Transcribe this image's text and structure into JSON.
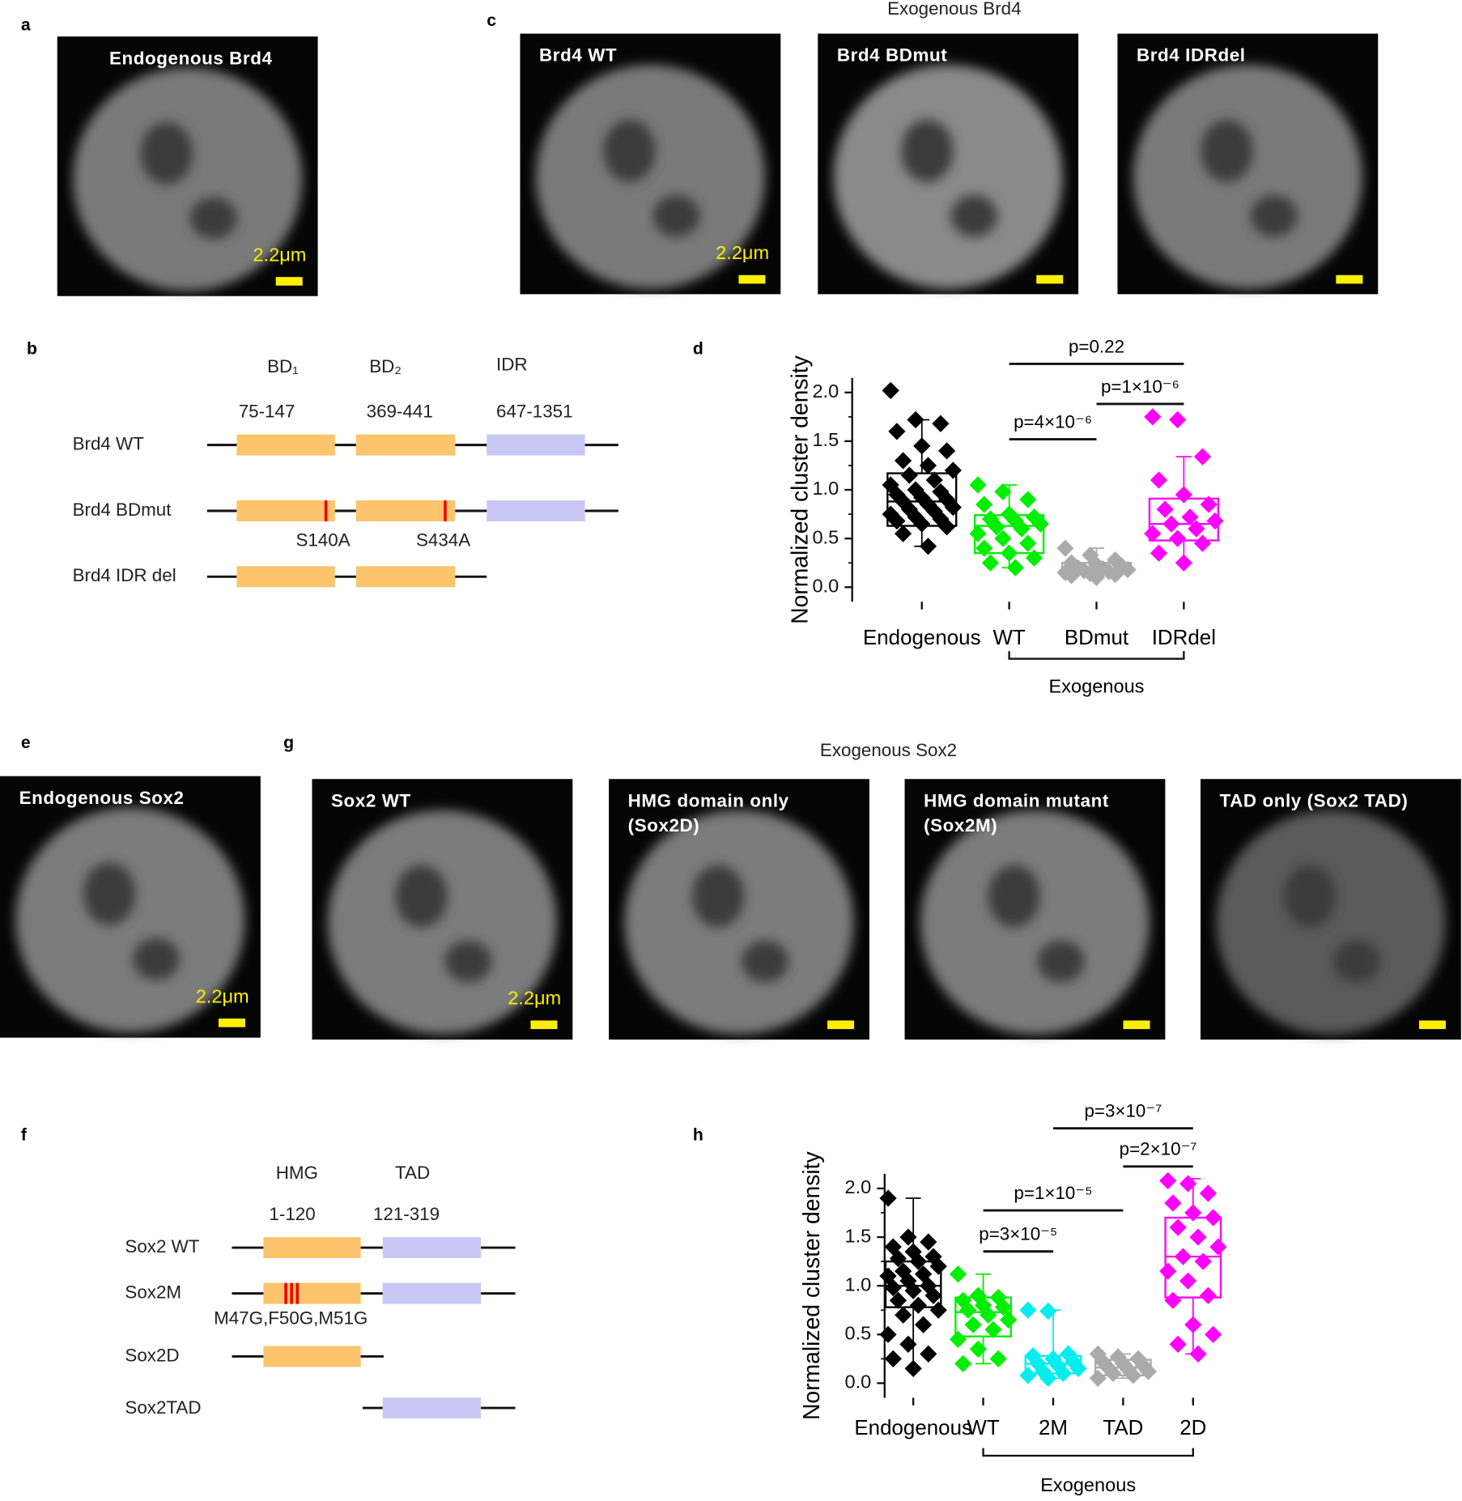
{
  "panels": {
    "a": {
      "letter": "a",
      "image": {
        "title": "Endogenous Brd4",
        "scale_bar": "2.2μm"
      }
    },
    "b": {
      "letter": "b",
      "domains": [
        {
          "name": "BD₁",
          "range": "75-147"
        },
        {
          "name": "BD₂",
          "range": "369-441"
        },
        {
          "name": "IDR",
          "range": "647-1351"
        }
      ],
      "constructs": [
        {
          "name": "Brd4 WT"
        },
        {
          "name": "Brd4 BDmut",
          "mutations": [
            "S140A",
            "S434A"
          ]
        },
        {
          "name": "Brd4 IDR del"
        }
      ]
    },
    "c": {
      "letter": "c",
      "title": "Exogenous Brd4",
      "images": [
        {
          "title": "Brd4 WT",
          "scale_bar": "2.2μm"
        },
        {
          "title": "Brd4 BDmut"
        },
        {
          "title": "Brd4 IDRdel"
        }
      ]
    },
    "d": {
      "letter": "d"
    },
    "e": {
      "letter": "e",
      "image": {
        "title": "Endogenous Sox2",
        "scale_bar": "2.2μm"
      }
    },
    "f": {
      "letter": "f",
      "domains": [
        {
          "name": "HMG",
          "range": "1-120"
        },
        {
          "name": "TAD",
          "range": "121-319"
        }
      ],
      "constructs": [
        {
          "name": "Sox2 WT"
        },
        {
          "name": "Sox2M",
          "mutations": "M47G,F50G,M51G"
        },
        {
          "name": "Sox2D"
        },
        {
          "name": "Sox2TAD"
        }
      ]
    },
    "g": {
      "letter": "g",
      "title": "Exogenous Sox2",
      "images": [
        {
          "title": [
            "Sox2 WT"
          ],
          "scale_bar": "2.2μm"
        },
        {
          "title": [
            "HMG domain only",
            "(Sox2D)"
          ]
        },
        {
          "title": [
            "HMG domain mutant",
            "(Sox2M)"
          ]
        },
        {
          "title": [
            "TAD only (Sox2 TAD)"
          ]
        }
      ]
    },
    "h": {
      "letter": "h"
    }
  },
  "chart_data": [
    {
      "type": "box",
      "ylabel": "Normalized cluster density",
      "categories": [
        "Endogenous",
        "WT",
        "BDmut",
        "IDRdel"
      ],
      "group_label": "Exogenous",
      "ylim": [
        -0.15,
        2.15
      ],
      "yticks": [
        {
          "value": 0,
          "label": "0.0"
        },
        0.5,
        {
          "value": 1,
          "label": "1.0"
        },
        1.5,
        {
          "value": 2,
          "label": "2.0"
        }
      ],
      "colors": [
        "#000000",
        "#00ee00",
        "#aaaaaa",
        "#ff00ff"
      ],
      "boxes": [
        {
          "q1": 0.63,
          "median": 0.88,
          "q3": 1.17,
          "whisker_low": 0.42,
          "whisker_high": 1.72,
          "points": [
            2.02,
            1.72,
            1.68,
            1.6,
            1.45,
            1.4,
            1.3,
            1.25,
            1.2,
            1.15,
            1.1,
            1.05,
            1.0,
            0.98,
            0.95,
            0.92,
            0.9,
            0.88,
            0.85,
            0.82,
            0.8,
            0.78,
            0.75,
            0.72,
            0.7,
            0.68,
            0.65,
            0.62,
            0.55,
            0.42
          ]
        },
        {
          "q1": 0.35,
          "median": 0.63,
          "q3": 0.74,
          "whisker_low": 0.2,
          "whisker_high": 1.05,
          "points": [
            1.05,
            0.98,
            0.9,
            0.85,
            0.75,
            0.72,
            0.7,
            0.68,
            0.65,
            0.62,
            0.6,
            0.55,
            0.5,
            0.45,
            0.4,
            0.35,
            0.3,
            0.25,
            0.2
          ]
        },
        {
          "q1": 0.14,
          "median": 0.19,
          "q3": 0.25,
          "whisker_low": 0.1,
          "whisker_high": 0.4,
          "points": [
            0.4,
            0.33,
            0.28,
            0.25,
            0.23,
            0.22,
            0.2,
            0.19,
            0.18,
            0.17,
            0.16,
            0.15,
            0.14,
            0.13,
            0.12,
            0.1
          ]
        },
        {
          "q1": 0.48,
          "median": 0.65,
          "q3": 0.91,
          "whisker_low": 0.25,
          "whisker_high": 1.34,
          "points": [
            1.75,
            1.72,
            1.34,
            1.1,
            0.95,
            0.85,
            0.8,
            0.72,
            0.68,
            0.65,
            0.6,
            0.55,
            0.5,
            0.45,
            0.35,
            0.25
          ]
        }
      ],
      "annotations": [
        {
          "text": "p=0.22",
          "between": [
            "WT",
            "IDRdel"
          ]
        },
        {
          "text": "p=1×10⁻⁶",
          "between": [
            "BDmut",
            "IDRdel"
          ]
        },
        {
          "text": "p=4×10⁻⁶",
          "between": [
            "WT",
            "BDmut"
          ]
        }
      ]
    },
    {
      "type": "box",
      "ylabel": "Normalized cluster density",
      "categories": [
        "Endogenous",
        "WT",
        "2M",
        "TAD",
        "2D"
      ],
      "group_label": "Exogenous",
      "ylim": [
        -0.15,
        2.15
      ],
      "yticks": [
        {
          "value": 0,
          "label": "0.0"
        },
        0.5,
        {
          "value": 1,
          "label": "1.0"
        },
        1.5,
        {
          "value": 2,
          "label": "2.0"
        }
      ],
      "colors": [
        "#000000",
        "#00ee00",
        "#00eeee",
        "#aaaaaa",
        "#ff00ff"
      ],
      "boxes": [
        {
          "q1": 0.78,
          "median": 1.0,
          "q3": 1.25,
          "whisker_low": 0.15,
          "whisker_high": 1.9,
          "points": [
            1.9,
            1.5,
            1.45,
            1.4,
            1.35,
            1.3,
            1.28,
            1.25,
            1.2,
            1.15,
            1.12,
            1.1,
            1.05,
            1.0,
            0.98,
            0.95,
            0.9,
            0.85,
            0.8,
            0.75,
            0.7,
            0.6,
            0.5,
            0.4,
            0.3,
            0.25,
            0.15
          ]
        },
        {
          "q1": 0.48,
          "median": 0.73,
          "q3": 0.88,
          "whisker_low": 0.2,
          "whisker_high": 1.12,
          "points": [
            1.12,
            0.9,
            0.88,
            0.85,
            0.8,
            0.78,
            0.75,
            0.7,
            0.65,
            0.6,
            0.55,
            0.45,
            0.35,
            0.25,
            0.2
          ]
        },
        {
          "q1": 0.1,
          "median": 0.2,
          "q3": 0.28,
          "whisker_low": 0.05,
          "whisker_high": 0.75,
          "points": [
            0.75,
            0.74,
            0.3,
            0.28,
            0.25,
            0.22,
            0.2,
            0.18,
            0.15,
            0.12,
            0.1,
            0.08,
            0.05
          ]
        },
        {
          "q1": 0.08,
          "median": 0.16,
          "q3": 0.24,
          "whisker_low": 0.05,
          "whisker_high": 0.3,
          "points": [
            0.3,
            0.27,
            0.25,
            0.22,
            0.2,
            0.18,
            0.16,
            0.14,
            0.12,
            0.1,
            0.08,
            0.05
          ]
        },
        {
          "q1": 0.88,
          "median": 1.3,
          "q3": 1.7,
          "whisker_low": 0.3,
          "whisker_high": 2.1,
          "points": [
            2.08,
            2.05,
            1.95,
            1.85,
            1.75,
            1.7,
            1.6,
            1.5,
            1.4,
            1.3,
            1.25,
            1.15,
            1.05,
            0.9,
            0.85,
            0.6,
            0.5,
            0.4,
            0.3
          ]
        }
      ],
      "annotations": [
        {
          "text": "p=3×10⁻⁷",
          "between": [
            "2M",
            "2D"
          ]
        },
        {
          "text": "p=2×10⁻⁷",
          "between": [
            "TAD",
            "2D"
          ]
        },
        {
          "text": "p=1×10⁻⁵",
          "between": [
            "WT",
            "TAD"
          ]
        },
        {
          "text": "p=3×10⁻⁵",
          "between": [
            "WT",
            "2M"
          ]
        }
      ]
    }
  ]
}
